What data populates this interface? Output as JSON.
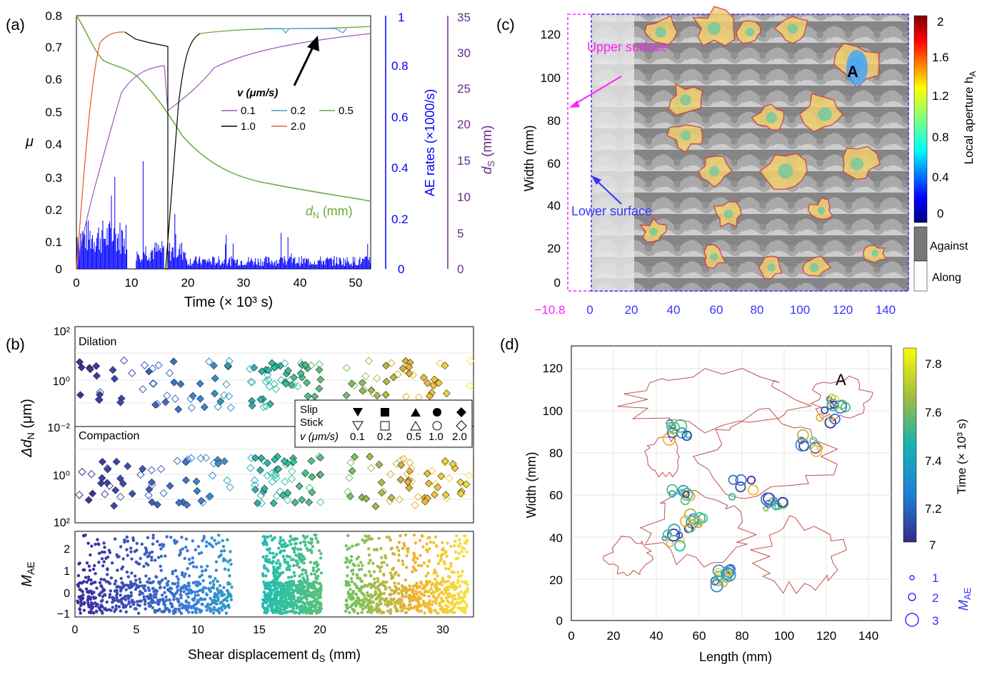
{
  "colors": {
    "axis_blue": "#0000ff",
    "axis_purple": "#6a2c8c",
    "green": "#6aaa3a",
    "orange": "#e8602a",
    "lightblue": "#3a9fd8",
    "magenta": "#ff22ff",
    "contour_red": "#c0504d"
  },
  "panel_a": {
    "label": "(a)",
    "ylabel_mu": "μ",
    "ylabel_ae": "AE rates (×1000/s)",
    "ylabel_ds_main": "d",
    "ylabel_ds_sub": "S",
    "ylabel_ds_unit": " (mm)",
    "xlabel": "Time (× 10³ s)",
    "dN_label_main": "d",
    "dN_label_sub": "N",
    "dN_label_unit": " (mm)",
    "legend_title": "v (μm/s)",
    "legend": [
      {
        "label": "0.1",
        "color": "#9b59b6"
      },
      {
        "label": "0.2",
        "color": "#3a9fd8"
      },
      {
        "label": "0.5",
        "color": "#6aaa3a"
      },
      {
        "label": "1.0",
        "color": "#000000"
      },
      {
        "label": "2.0",
        "color": "#e8602a"
      }
    ],
    "mu_ticks": [
      "0",
      "0.1",
      "0.2",
      "0.3",
      "0.4",
      "0.5",
      "0.6",
      "0.7",
      "0.8"
    ],
    "ae_ticks": [
      "0",
      "0.2",
      "0.4",
      "0.6",
      "0.8",
      "1"
    ],
    "ds_ticks": [
      "0",
      "5",
      "10",
      "15",
      "20",
      "25",
      "30",
      "35"
    ],
    "x_ticks": [
      "0",
      "10",
      "20",
      "30",
      "40",
      "50"
    ]
  },
  "panel_b": {
    "label": "(b)",
    "dilation": "Dilation",
    "compaction": "Compaction",
    "ylabel_top_main": "Δd",
    "ylabel_top_sub": "N",
    "ylabel_top_unit": " (μm)",
    "ylabel_bottom_main": "M",
    "ylabel_bottom_sub": "AE",
    "xlabel_main": "Shear displacement d",
    "xlabel_sub": "S",
    "xlabel_unit": " (mm)",
    "top_ticks": [
      "10²",
      "10⁰",
      "10⁻²"
    ],
    "mid_ticks": [
      "10⁰",
      "10²"
    ],
    "m_ticks": [
      "2",
      "1",
      "0",
      "−1"
    ],
    "x_ticks": [
      "0",
      "5",
      "10",
      "15",
      "20",
      "25",
      "30"
    ],
    "legend_slip": "Slip",
    "legend_stick": "Stick",
    "legend_v": "v (μm/s)",
    "legend_values": [
      "0.1",
      "0.2",
      "0.5",
      "1.0",
      "2.0"
    ]
  },
  "panel_c": {
    "label": "(c)",
    "ylabel": "Width (mm)",
    "upper_surface": "Upper surface",
    "lower_surface": "Lower surface",
    "marker": "A",
    "y_ticks": [
      "120",
      "100",
      "80",
      "60",
      "40",
      "20",
      "0"
    ],
    "x_ticks_magenta": "−10.8",
    "x_ticks": [
      "0",
      "20",
      "40",
      "60",
      "80",
      "100",
      "120",
      "140"
    ],
    "cbar_ticks": [
      "2",
      "1.6",
      "1.2",
      "0.8",
      "0.4",
      "0"
    ],
    "cbar_label_main": "Local aperture h",
    "cbar_label_sub": "A",
    "against": "Against",
    "along": "Along"
  },
  "panel_d": {
    "label": "(d)",
    "ylabel": "Width (mm)",
    "xlabel": "Length (mm)",
    "marker": "A",
    "y_ticks": [
      "120",
      "100",
      "80",
      "60",
      "40",
      "20",
      "0"
    ],
    "x_ticks": [
      "0",
      "20",
      "40",
      "60",
      "80",
      "100",
      "120",
      "140"
    ],
    "cbar_ticks": [
      "7.8",
      "7.6",
      "7.4",
      "7.2",
      "7"
    ],
    "cbar_label": "Time (× 10³ s)",
    "size_legend": [
      "1",
      "2",
      "3"
    ],
    "size_label_main": "M",
    "size_label_sub": "AE"
  }
}
